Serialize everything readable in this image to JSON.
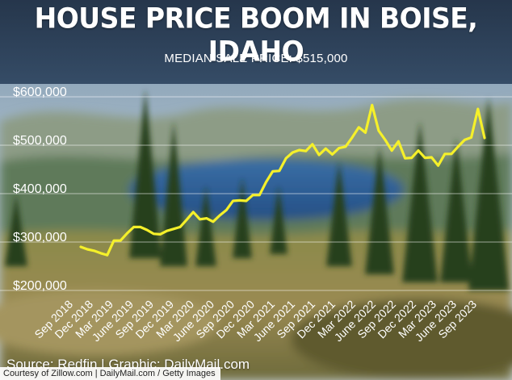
{
  "header": {
    "title": "HOUSE PRICE BOOM IN BOISE, IDAHO",
    "subtitle": "MEDIAN SALE PRICE: $515,000"
  },
  "footer": {
    "source": "Source: Redfin | Graphic: DailyMail.com",
    "credit": "Courtesy of Zillow.com | DailyMail.com / Getty Images"
  },
  "colors": {
    "line": "#f5f02a",
    "header_band": "#2c3e55",
    "text": "#ffffff"
  },
  "chart_data": {
    "type": "line",
    "title": "HOUSE PRICE BOOM IN BOISE, IDAHO",
    "subtitle": "MEDIAN SALE PRICE: $515,000",
    "xlabel": "",
    "ylabel": "",
    "ylim": [
      200000,
      600000
    ],
    "yticks": [
      200000,
      300000,
      400000,
      500000,
      600000
    ],
    "ytick_labels": [
      "$200,000",
      "$300,000",
      "$400,000",
      "$500,000",
      "$600,000"
    ],
    "xtick_labels": [
      "Sep 2018",
      "Dec 2018",
      "Mar 2019",
      "June 2019",
      "Sep 2019",
      "Dec 2019",
      "Mar 2020",
      "June 2020",
      "Sep 2020",
      "Dec 2020",
      "Mar 2021",
      "June 2021",
      "Sep 2021",
      "Dec 2021",
      "Mar 2022",
      "June 2022",
      "Sep 2022",
      "Dec 2022",
      "Mar 2023",
      "June 2023",
      "Sep 2023"
    ],
    "grid": true,
    "legend": false,
    "series": [
      {
        "x": [
          "Sep 2018",
          "Oct 2018",
          "Nov 2018",
          "Dec 2018",
          "Jan 2019",
          "Feb 2019",
          "Mar 2019",
          "Apr 2019",
          "May 2019",
          "June 2019",
          "Jul 2019",
          "Aug 2019",
          "Sep 2019",
          "Oct 2019",
          "Nov 2019",
          "Dec 2019",
          "Jan 2020",
          "Feb 2020",
          "Mar 2020",
          "Apr 2020",
          "May 2020",
          "June 2020",
          "Jul 2020",
          "Aug 2020",
          "Sep 2020",
          "Oct 2020",
          "Nov 2020",
          "Dec 2020",
          "Jan 2021",
          "Feb 2021",
          "Mar 2021",
          "Apr 2021",
          "May 2021",
          "June 2021",
          "Jul 2021",
          "Aug 2021",
          "Sep 2021",
          "Oct 2021",
          "Nov 2021",
          "Dec 2021",
          "Jan 2022",
          "Feb 2022",
          "Mar 2022",
          "Apr 2022",
          "May 2022",
          "June 2022",
          "Jul 2022",
          "Aug 2022",
          "Sep 2022",
          "Oct 2022",
          "Nov 2022",
          "Dec 2022",
          "Jan 2023",
          "Feb 2023",
          "Mar 2023",
          "Apr 2023",
          "May 2023",
          "June 2023",
          "Jul 2023",
          "Aug 2023",
          "Sep 2023",
          "Oct 2023"
        ],
        "values": [
          290000,
          285000,
          282000,
          277000,
          273000,
          303000,
          303000,
          318000,
          331000,
          331000,
          325000,
          317000,
          316000,
          323000,
          327000,
          331000,
          346000,
          362000,
          347000,
          349000,
          342000,
          355000,
          366000,
          385000,
          386000,
          385000,
          397000,
          397000,
          424000,
          446000,
          447000,
          473000,
          485000,
          490000,
          488000,
          502000,
          480000,
          493000,
          481000,
          494000,
          497000,
          516000,
          537000,
          526000,
          583000,
          530000,
          511000,
          489000,
          508000,
          473000,
          474000,
          489000,
          474000,
          475000,
          458000,
          482000,
          482000,
          497000,
          511000,
          516000,
          575000,
          515000
        ]
      }
    ]
  }
}
